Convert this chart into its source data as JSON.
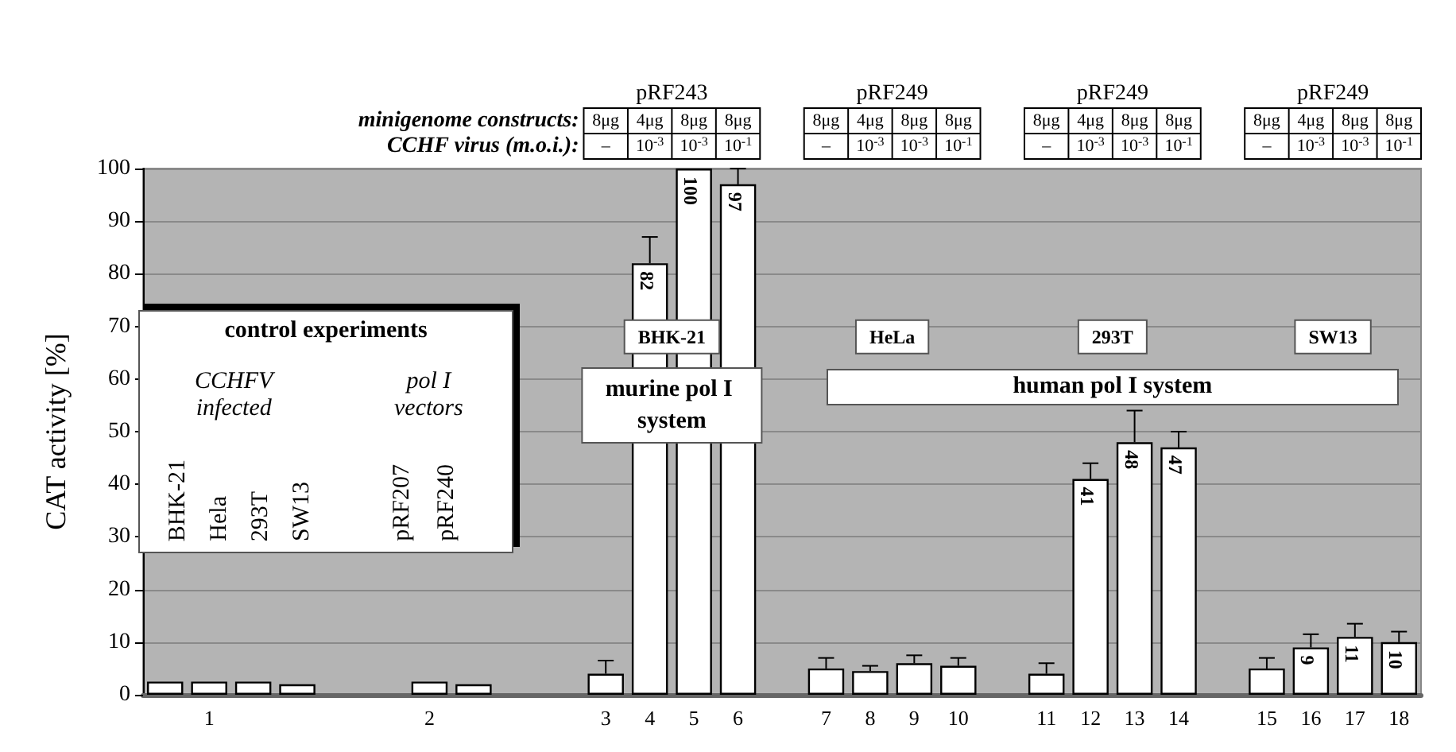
{
  "chart_data": {
    "type": "bar",
    "ylabel": "CAT activity [%]",
    "categories": [
      null,
      "1",
      null,
      null,
      null,
      null,
      "2",
      null,
      null,
      null,
      "3",
      "4",
      "5",
      "6",
      null,
      "7",
      "8",
      "9",
      "10",
      null,
      "11",
      "12",
      "13",
      "14",
      null,
      "15",
      "16",
      "17",
      "18"
    ],
    "values": [
      2.5,
      2.5,
      2.5,
      2,
      null,
      null,
      2.5,
      2,
      null,
      null,
      4,
      82,
      100,
      97,
      null,
      5,
      4.5,
      6,
      5.5,
      null,
      4,
      41,
      48,
      47,
      null,
      5,
      9,
      11,
      10
    ],
    "errors": [
      null,
      null,
      null,
      null,
      null,
      null,
      null,
      null,
      null,
      null,
      [
        4,
        6.5
      ],
      [
        82,
        87
      ],
      null,
      [
        97,
        100
      ],
      null,
      [
        5,
        7
      ],
      [
        4.5,
        5.5
      ],
      [
        6,
        7.5
      ],
      [
        5.5,
        7
      ],
      null,
      [
        4,
        6
      ],
      [
        41,
        44
      ],
      [
        48,
        54
      ],
      [
        47,
        50
      ],
      null,
      [
        5,
        7
      ],
      [
        9,
        11.5
      ],
      [
        11,
        13.5
      ],
      [
        10,
        12
      ]
    ],
    "value_labels": [
      null,
      null,
      null,
      null,
      null,
      null,
      null,
      null,
      null,
      null,
      null,
      "82",
      "100",
      "97",
      null,
      null,
      null,
      null,
      null,
      null,
      null,
      "41",
      "48",
      "47",
      null,
      null,
      "9",
      "11",
      "10"
    ],
    "color": "#ffffff",
    "ylim": [
      0,
      100
    ],
    "yticks": [
      0,
      10,
      20,
      30,
      40,
      50,
      60,
      70,
      80,
      90,
      100
    ],
    "grid": "y",
    "annotations": [
      "minigenome constructs:",
      "CCHF virus (m.o.i.):",
      "pRF243",
      "pRF249",
      "pRF249",
      "pRF249",
      "8μg",
      "4μg",
      "8μg",
      "8μg",
      "–",
      "10$^{-3}$",
      "10$^{-3}$",
      "10$^{-1}$",
      "8μg",
      "4μg",
      "8μg",
      "8μg",
      "–",
      "10$^{-3}$",
      "10$^{-3}$",
      "10$^{-1}$",
      "8μg",
      "4μg",
      "8μg",
      "8μg",
      "–",
      "10$^{-3}$",
      "10$^{-3}$",
      "10$^{-1}$",
      "8μg",
      "4μg",
      "8μg",
      "8μg",
      "–",
      "10$^{-3}$",
      "10$^{-3}$",
      "10$^{-1}$",
      "control experiments",
      "CCHFV infected",
      "pol I vectors",
      "BHK-21",
      "Hela",
      "293T",
      "SW13",
      "pRF207",
      "pRF240",
      "BHK-21",
      "HeLa",
      "293T",
      "SW13",
      "murine pol I system",
      "human pol I system"
    ]
  }
}
